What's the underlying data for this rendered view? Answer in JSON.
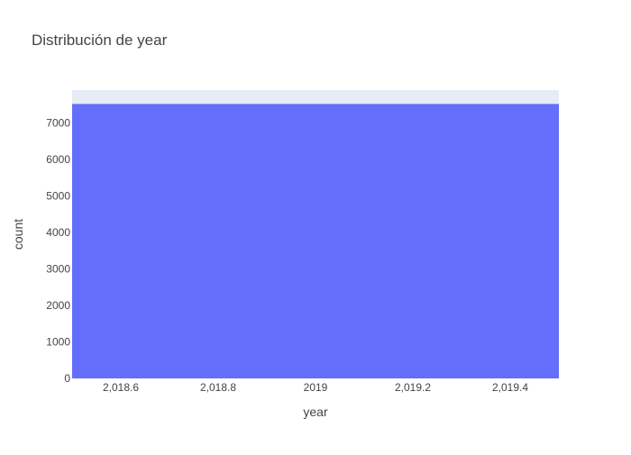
{
  "chart_data": {
    "type": "bar",
    "title": "Distribución de year",
    "xlabel": "year",
    "ylabel": "count",
    "x_range": [
      2018.5,
      2019.5
    ],
    "ylim": [
      0,
      7900
    ],
    "x_ticks": [
      2018.6,
      2018.8,
      2019,
      2019.2,
      2019.4
    ],
    "x_tick_labels": [
      "2,018.6",
      "2,018.8",
      "2019",
      "2,019.2",
      "2,019.4"
    ],
    "y_ticks": [
      0,
      1000,
      2000,
      3000,
      4000,
      5000,
      6000,
      7000
    ],
    "y_tick_labels": [
      "0",
      "1000",
      "2000",
      "3000",
      "4000",
      "5000",
      "6000",
      "7000"
    ],
    "bars": [
      {
        "x_start": 2018.5,
        "x_end": 2019.5,
        "value": 7520
      }
    ],
    "grid": false,
    "colors": {
      "bar": "#636efa",
      "plot_background": "#e5ecf6",
      "title_text": "#444444",
      "tick_text": "#444444"
    }
  }
}
